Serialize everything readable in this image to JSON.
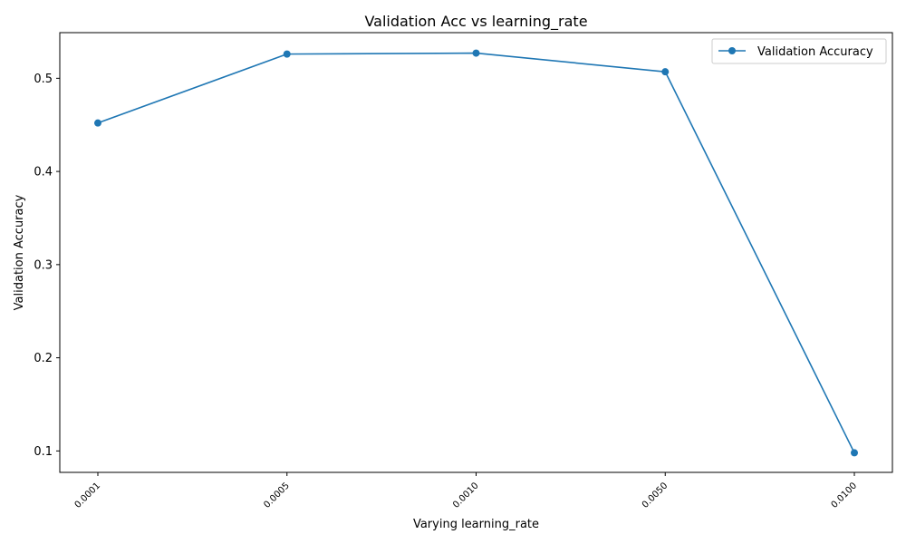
{
  "chart_data": {
    "type": "line",
    "title": "Validation Acc vs learning_rate",
    "xlabel": "Varying learning_rate",
    "ylabel": "Validation Accuracy",
    "categories": [
      "0.0001",
      "0.0005",
      "0.0010",
      "0.0050",
      "0.0100"
    ],
    "series": [
      {
        "name": "Validation Accuracy",
        "values": [
          0.452,
          0.526,
          0.527,
          0.507,
          0.098
        ],
        "color": "#1f77b4",
        "marker": "circle"
      }
    ],
    "yticks": [
      "0.1",
      "0.2",
      "0.3",
      "0.4",
      "0.5"
    ],
    "ylim": [
      0.077,
      0.549
    ],
    "grid": false,
    "legend": "top-right"
  }
}
